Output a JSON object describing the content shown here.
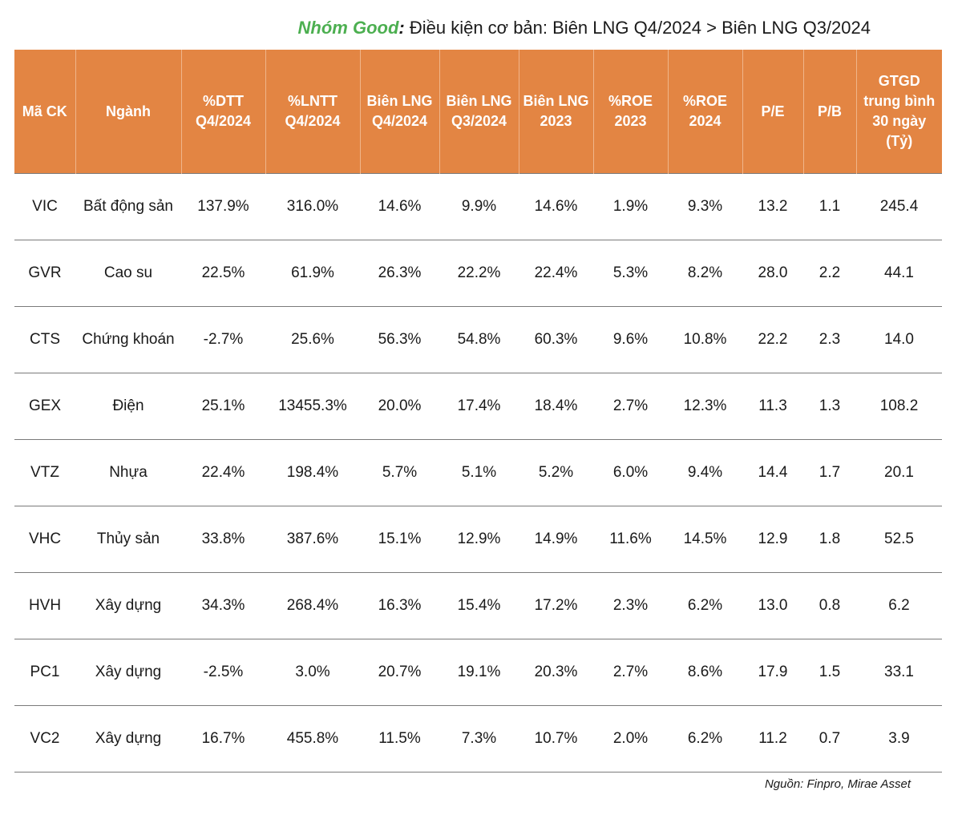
{
  "title": {
    "group": "Nhóm Good",
    "colon": ":",
    "condition": " Điều kiện cơ bản: Biên LNG Q4/2024 > Biên LNG Q3/2024"
  },
  "table": {
    "headers": [
      "Mã CK",
      "Ngành",
      "%DTT Q4/2024",
      "%LNTT Q4/2024",
      "Biên LNG Q4/2024",
      "Biên LNG Q3/2024",
      "Biên LNG 2023",
      "%ROE 2023",
      "%ROE 2024",
      "P/E",
      "P/B",
      "GTGD trung bình 30 ngày (Tỷ)"
    ],
    "rows": [
      [
        "VIC",
        "Bất động sản",
        "137.9%",
        "316.0%",
        "14.6%",
        "9.9%",
        "14.6%",
        "1.9%",
        "9.3%",
        "13.2",
        "1.1",
        "245.4"
      ],
      [
        "GVR",
        "Cao su",
        "22.5%",
        "61.9%",
        "26.3%",
        "22.2%",
        "22.4%",
        "5.3%",
        "8.2%",
        "28.0",
        "2.2",
        "44.1"
      ],
      [
        "CTS",
        "Chứng khoán",
        "-2.7%",
        "25.6%",
        "56.3%",
        "54.8%",
        "60.3%",
        "9.6%",
        "10.8%",
        "22.2",
        "2.3",
        "14.0"
      ],
      [
        "GEX",
        "Điện",
        "25.1%",
        "13455.3%",
        "20.0%",
        "17.4%",
        "18.4%",
        "2.7%",
        "12.3%",
        "11.3",
        "1.3",
        "108.2"
      ],
      [
        "VTZ",
        "Nhựa",
        "22.4%",
        "198.4%",
        "5.7%",
        "5.1%",
        "5.2%",
        "6.0%",
        "9.4%",
        "14.4",
        "1.7",
        "20.1"
      ],
      [
        "VHC",
        "Thủy sản",
        "33.8%",
        "387.6%",
        "15.1%",
        "12.9%",
        "14.9%",
        "11.6%",
        "14.5%",
        "12.9",
        "1.8",
        "52.5"
      ],
      [
        "HVH",
        "Xây dựng",
        "34.3%",
        "268.4%",
        "16.3%",
        "15.4%",
        "17.2%",
        "2.3%",
        "6.2%",
        "13.0",
        "0.8",
        "6.2"
      ],
      [
        "PC1",
        "Xây dựng",
        "-2.5%",
        "3.0%",
        "20.7%",
        "19.1%",
        "20.3%",
        "2.7%",
        "8.6%",
        "17.9",
        "1.5",
        "33.1"
      ],
      [
        "VC2",
        "Xây dựng",
        "16.7%",
        "455.8%",
        "11.5%",
        "7.3%",
        "10.7%",
        "2.0%",
        "6.2%",
        "11.2",
        "0.7",
        "3.9"
      ]
    ]
  },
  "source": "Nguồn: Finpro, Mirae Asset",
  "colors": {
    "header_bg": "#e38543",
    "group_label": "#4caf50",
    "rule": "#7a7a7a"
  }
}
